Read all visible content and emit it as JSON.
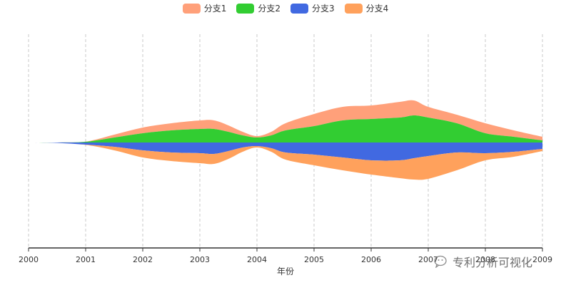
{
  "chart_data": {
    "type": "area",
    "xlabel": "年份",
    "ylabel": "",
    "x": [
      2000,
      2000.5,
      2001,
      2001.5,
      2002,
      2002.5,
      2003,
      2003.25,
      2003.5,
      2003.75,
      2004,
      2004.25,
      2004.5,
      2005,
      2005.5,
      2006,
      2006.5,
      2006.75,
      2007,
      2007.5,
      2008,
      2008.5,
      2009
    ],
    "xticks": [
      "2000",
      "2001",
      "2002",
      "2003",
      "2004",
      "2005",
      "2006",
      "2007",
      "2008",
      "2009"
    ],
    "xlim": [
      2000,
      2009
    ],
    "grid": "vertical dashed",
    "legend_position": "top-center",
    "series": [
      {
        "name": "分支1",
        "color": "#FFA07A",
        "values": [
          0,
          0,
          0.3,
          4,
          8,
          10,
          12,
          12,
          9,
          5,
          2,
          5,
          10,
          17,
          19,
          19,
          22,
          21,
          15,
          12,
          14,
          9,
          5
        ]
      },
      {
        "name": "分支2",
        "color": "#32CD32",
        "values": [
          0,
          0,
          1,
          7,
          13,
          17,
          19,
          19,
          15,
          10,
          7,
          10,
          17,
          23,
          31,
          33,
          35,
          38,
          35,
          27,
          13,
          8,
          3
        ]
      },
      {
        "name": "分支3",
        "color": "#4169E1",
        "values": [
          0,
          0.6,
          3,
          6,
          11,
          14,
          15,
          16,
          12,
          7,
          5,
          8,
          14,
          17,
          21,
          25,
          25,
          22,
          19,
          14,
          15,
          13,
          9
        ]
      },
      {
        "name": "分支4",
        "color": "#FFA15C",
        "values": [
          0,
          0,
          0.4,
          5,
          10,
          12,
          14,
          14,
          11,
          6,
          2,
          5,
          10,
          15,
          18,
          20,
          25,
          30,
          32,
          25,
          10,
          7,
          3
        ]
      }
    ],
    "title": ""
  },
  "watermark": {
    "text": "专利分析可视化"
  }
}
